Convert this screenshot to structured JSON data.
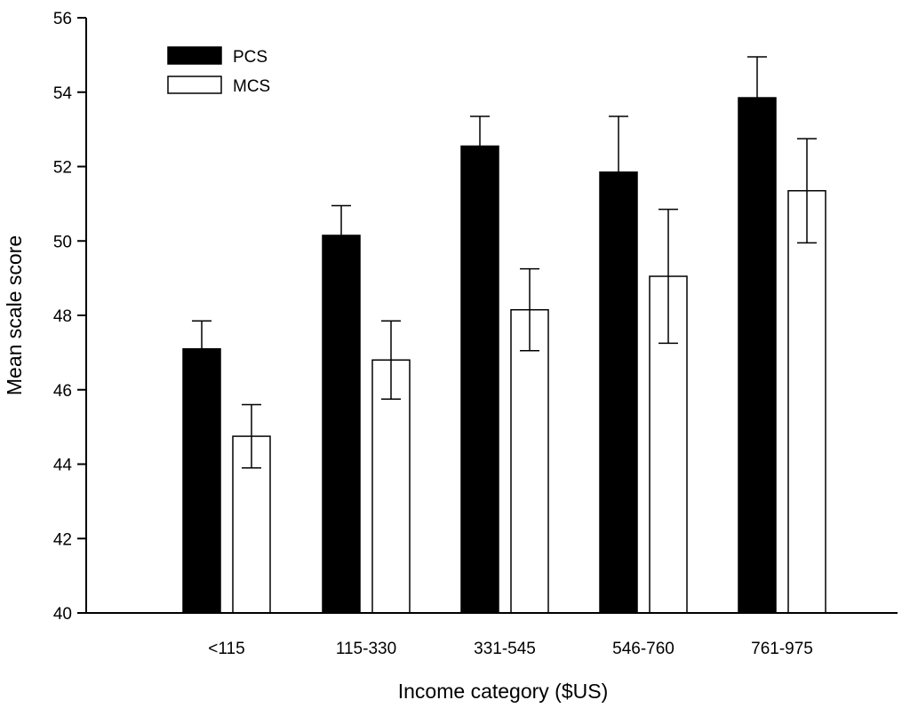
{
  "chart_data": {
    "type": "bar",
    "title": "",
    "xlabel": "Income category ($US)",
    "ylabel": "Mean scale score",
    "ylim": [
      40,
      56
    ],
    "yticks": [
      40,
      42,
      44,
      46,
      48,
      50,
      52,
      54,
      56
    ],
    "categories": [
      "<115",
      "115-330",
      "331-545",
      "546-760",
      "761-975"
    ],
    "series": [
      {
        "name": "PCS",
        "color": "#000000",
        "values": [
          47.1,
          50.15,
          52.55,
          51.85,
          53.85
        ],
        "error": [
          0.75,
          0.8,
          0.8,
          1.5,
          1.1
        ]
      },
      {
        "name": "MCS",
        "color": "#ffffff",
        "values": [
          44.75,
          46.8,
          48.15,
          49.05,
          51.35
        ],
        "error": [
          0.85,
          1.05,
          1.1,
          1.8,
          1.4
        ]
      }
    ],
    "legend_position": "top-left",
    "grid": false
  }
}
